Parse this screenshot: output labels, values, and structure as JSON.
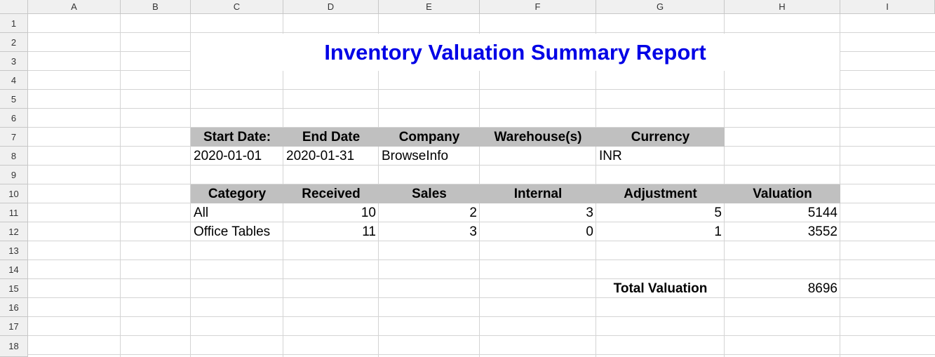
{
  "columns": [
    "A",
    "B",
    "C",
    "D",
    "E",
    "F",
    "G",
    "H",
    "I"
  ],
  "rows": [
    "1",
    "2",
    "3",
    "4",
    "5",
    "6",
    "7",
    "8",
    "9",
    "10",
    "11",
    "12",
    "13",
    "14",
    "15",
    "16",
    "17",
    "18"
  ],
  "report": {
    "title": "Inventory Valuation Summary Report",
    "title_color": "#0000e6"
  },
  "filters": {
    "headers": [
      "Start Date:",
      "End Date",
      "Company",
      "Warehouse(s)",
      "Currency"
    ],
    "values": [
      "2020-01-01",
      "2020-01-31",
      "BrowseInfo",
      "",
      "INR"
    ]
  },
  "table": {
    "headers": [
      "Category",
      "Received",
      "Sales",
      "Internal",
      "Adjustment",
      "Valuation"
    ],
    "rows": [
      [
        "All",
        "10",
        "2",
        "3",
        "5",
        "5144"
      ],
      [
        "Office Tables",
        "11",
        "3",
        "0",
        "1",
        "3552"
      ]
    ]
  },
  "total": {
    "label": "Total Valuation",
    "value": "8696"
  },
  "colors": {
    "header_fill": "#c0c0c0",
    "gridline": "#d4d4d4"
  }
}
